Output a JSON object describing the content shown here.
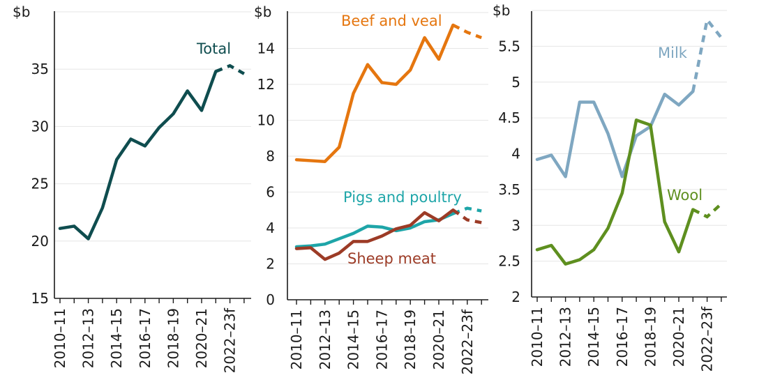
{
  "chart_data": [
    {
      "type": "line",
      "unit_label": "$b",
      "ylim": [
        15,
        40
      ],
      "yticks": [
        15,
        20,
        25,
        30,
        35
      ],
      "x": [
        "2010–11",
        "2011–12",
        "2012–13",
        "2013–14",
        "2014–15",
        "2015–16",
        "2016–17",
        "2017–18",
        "2018–19",
        "2019–20",
        "2020–21",
        "2021–22",
        "2022–23f",
        "2023–24f"
      ],
      "x_tick_labels": [
        "2010–11",
        "2012–13",
        "2014–15",
        "2016–17",
        "2018–19",
        "2020–21",
        "2022–23f"
      ],
      "forecast_start_index": 11,
      "series": [
        {
          "name": "Total",
          "color": "#0f4d4f",
          "values": [
            21.1,
            21.3,
            20.2,
            22.9,
            27.1,
            28.9,
            28.3,
            29.9,
            31.1,
            33.1,
            31.4,
            34.8,
            35.3,
            34.6
          ]
        }
      ]
    },
    {
      "type": "line",
      "unit_label": "$b",
      "ylim": [
        0,
        16
      ],
      "yticks": [
        0,
        2,
        4,
        6,
        8,
        10,
        12,
        14
      ],
      "x": [
        "2010–11",
        "2011–12",
        "2012–13",
        "2013–14",
        "2014–15",
        "2015–16",
        "2016–17",
        "2017–18",
        "2018–19",
        "2019–20",
        "2020–21",
        "2021–22",
        "2022–23f",
        "2023–24f"
      ],
      "x_tick_labels": [
        "2010–11",
        "2012–13",
        "2014–15",
        "2016–17",
        "2018–19",
        "2020–21",
        "2022–23f"
      ],
      "forecast_start_index": 11,
      "series": [
        {
          "name": "Beef and veal",
          "color": "#e5760f",
          "values": [
            7.8,
            7.75,
            7.7,
            8.5,
            11.5,
            13.1,
            12.1,
            12.0,
            12.8,
            14.6,
            13.4,
            15.3,
            14.9,
            14.6
          ]
        },
        {
          "name": "Pigs and poultry",
          "color": "#1ea5a8",
          "values": [
            2.95,
            3.0,
            3.1,
            3.4,
            3.7,
            4.1,
            4.05,
            3.85,
            4.0,
            4.35,
            4.45,
            4.8,
            5.1,
            4.95
          ]
        },
        {
          "name": "Sheep meat",
          "color": "#9c3b26",
          "values": [
            2.85,
            2.9,
            2.25,
            2.6,
            3.25,
            3.25,
            3.55,
            3.95,
            4.15,
            4.85,
            4.4,
            5.0,
            4.45,
            4.3
          ]
        }
      ]
    },
    {
      "type": "line",
      "unit_label": "$b",
      "ylim": [
        2,
        6
      ],
      "yticks": [
        2,
        2.5,
        3,
        3.5,
        4,
        4.5,
        5,
        5.5
      ],
      "x": [
        "2010–11",
        "2011–12",
        "2012–13",
        "2013–14",
        "2014–15",
        "2015–16",
        "2016–17",
        "2017–18",
        "2018–19",
        "2019–20",
        "2020–21",
        "2021–22",
        "2022–23f",
        "2023–24f"
      ],
      "x_tick_labels": [
        "2010–11",
        "2012–13",
        "2014–15",
        "2016–17",
        "2018–19",
        "2020–21",
        "2022–23f"
      ],
      "forecast_start_index": 11,
      "series": [
        {
          "name": "Milk",
          "color": "#7fa7c1",
          "values": [
            3.92,
            3.98,
            3.68,
            4.72,
            4.72,
            4.28,
            3.68,
            4.25,
            4.38,
            4.83,
            4.68,
            4.87,
            5.87,
            5.62
          ]
        },
        {
          "name": "Wool",
          "color": "#5e8f1f",
          "values": [
            2.66,
            2.72,
            2.46,
            2.52,
            2.66,
            2.96,
            3.45,
            4.47,
            4.4,
            3.05,
            2.63,
            3.22,
            3.12,
            3.3
          ]
        }
      ]
    }
  ],
  "panels": [
    {
      "unit": "$b",
      "yticks": [
        "15",
        "20",
        "25",
        "30",
        "35"
      ],
      "labels": [
        "Total"
      ],
      "xticks": [
        "2010–11",
        "2012–13",
        "2014–15",
        "2016–17",
        "2018–19",
        "2020–21",
        "2022–23f"
      ]
    },
    {
      "unit": "$b",
      "yticks": [
        "0",
        "2",
        "4",
        "6",
        "8",
        "10",
        "12",
        "14"
      ],
      "labels": [
        "Beef and veal",
        "Pigs and poultry",
        "Sheep meat"
      ],
      "xticks": [
        "2010–11",
        "2012–13",
        "2014–15",
        "2016–17",
        "2018–19",
        "2020–21",
        "2022–23f"
      ]
    },
    {
      "unit": "$b",
      "yticks": [
        "2",
        "2.5",
        "3",
        "3.5",
        "4",
        "4.5",
        "5",
        "5.5"
      ],
      "labels": [
        "Milk",
        "Wool"
      ],
      "xticks": [
        "2010–11",
        "2012–13",
        "2014–15",
        "2016–17",
        "2018–19",
        "2020–21",
        "2022–23f"
      ]
    }
  ]
}
